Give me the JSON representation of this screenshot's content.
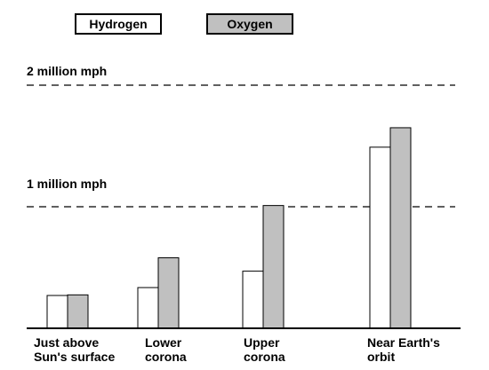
{
  "legend": {
    "hydrogen": "Hydrogen",
    "oxygen": "Oxygen"
  },
  "reference_lines": {
    "two_million": "2 million mph",
    "one_million": "1 million mph"
  },
  "categories": {
    "c0": {
      "line1": "Just above",
      "line2": "Sun's surface"
    },
    "c1": {
      "line1": "Lower",
      "line2": "corona"
    },
    "c2": {
      "line1": "Upper",
      "line2": "corona"
    },
    "c3": {
      "line1": "Near Earth's",
      "line2": "orbit"
    }
  },
  "colors": {
    "hydrogen_fill": "#ffffff",
    "oxygen_fill": "#c0c0c0",
    "stroke": "#000000"
  },
  "chart_data": {
    "type": "bar",
    "categories": [
      "Just above Sun's surface",
      "Lower corona",
      "Upper corona",
      "Near Earth's orbit"
    ],
    "series": [
      {
        "name": "Hydrogen",
        "values": [
          270000,
          335000,
          470000,
          1490000
        ]
      },
      {
        "name": "Oxygen",
        "values": [
          275000,
          580000,
          1010000,
          1650000
        ]
      }
    ],
    "ylim": [
      0,
      2200000
    ],
    "reference_lines": [
      {
        "label": "2 million mph",
        "value": 2000000,
        "style": "dashed"
      },
      {
        "label": "1 million mph",
        "value": 1000000,
        "style": "dashed"
      }
    ],
    "legend_placement": "top",
    "grid": false,
    "y_axis_visible": false
  }
}
